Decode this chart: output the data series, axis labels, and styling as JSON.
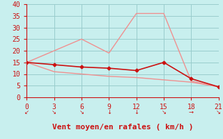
{
  "xlabel": "Vent moyen/en rafales ( km/h )",
  "background_color": "#c8efee",
  "grid_color": "#99cccc",
  "line_color_dark": "#cc1111",
  "line_color_light": "#f09090",
  "xlim": [
    0,
    21
  ],
  "ylim": [
    0,
    40
  ],
  "xticks": [
    0,
    3,
    6,
    9,
    12,
    15,
    18,
    21
  ],
  "yticks": [
    0,
    5,
    10,
    15,
    20,
    25,
    30,
    35,
    40
  ],
  "x_upper": [
    0,
    3,
    6,
    9,
    12,
    15,
    18,
    21
  ],
  "y_upper": [
    15,
    20,
    25,
    19,
    36,
    36,
    7,
    4.5
  ],
  "x_lower": [
    0,
    3,
    6,
    9,
    12,
    15,
    18,
    21
  ],
  "y_lower": [
    15,
    11,
    10,
    9,
    8.5,
    7.5,
    6.5,
    4.5
  ],
  "x_dark": [
    0,
    3,
    6,
    9,
    12,
    15,
    18,
    21
  ],
  "y_dark": [
    15,
    14,
    13,
    12.5,
    11.5,
    15,
    8,
    4.5
  ],
  "xlabel_fontsize": 8,
  "tick_fontsize": 7,
  "axis_color": "#cc1111",
  "wind_symbols": [
    "↙",
    "↘",
    "↘",
    "↓",
    "↓",
    "↘",
    "→",
    "↘"
  ]
}
